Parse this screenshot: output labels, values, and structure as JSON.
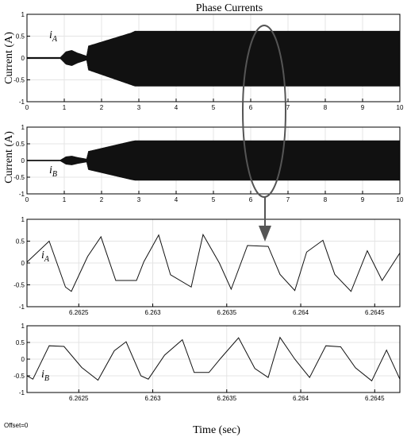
{
  "title": "Phase Currents",
  "offset_label": "Offset=0",
  "xlabel": "Time (sec)",
  "colors": {
    "trace": "#111111",
    "grid": "#e4e4e4",
    "axis": "#000000",
    "annotation": "#555555"
  },
  "chart_data": [
    {
      "type": "line",
      "ylabel": "Current (A)",
      "series": [
        {
          "name": "iA",
          "x": [
            0,
            0.9,
            1.05,
            1.2,
            1.35,
            1.6,
            1.65,
            2.8,
            2.9,
            10
          ],
          "envelope_upper": [
            0.02,
            0.02,
            0.15,
            0.18,
            0.12,
            0.05,
            0.28,
            0.58,
            0.62,
            0.62
          ],
          "envelope_lower": [
            -0.02,
            -0.02,
            -0.15,
            -0.18,
            -0.12,
            -0.05,
            -0.28,
            -0.62,
            -0.65,
            -0.65
          ]
        }
      ],
      "series_label": {
        "main": "i",
        "sub": "A"
      },
      "xlim": [
        0,
        10
      ],
      "ylim": [
        -1,
        1
      ],
      "xticks": [
        0,
        1,
        2,
        3,
        4,
        5,
        6,
        7,
        8,
        9,
        10
      ],
      "yticks": [
        1,
        0.5,
        0,
        -0.5,
        -1
      ],
      "yticklabels": [
        "1",
        "0.5",
        "0",
        "-0.5",
        "-1"
      ],
      "grid": true
    },
    {
      "type": "line",
      "ylabel": "Current (A)",
      "series": [
        {
          "name": "iB",
          "x": [
            0,
            0.9,
            1.05,
            1.2,
            1.35,
            1.6,
            1.65,
            2.8,
            2.9,
            10
          ],
          "envelope_upper": [
            0.02,
            0.02,
            0.12,
            0.14,
            0.1,
            0.05,
            0.28,
            0.58,
            0.6,
            0.6
          ],
          "envelope_lower": [
            -0.02,
            -0.02,
            -0.12,
            -0.14,
            -0.1,
            -0.05,
            -0.28,
            -0.58,
            -0.6,
            -0.6
          ]
        }
      ],
      "series_label": {
        "main": "i",
        "sub": "B"
      },
      "xlim": [
        0,
        10
      ],
      "ylim": [
        -1,
        1
      ],
      "xticks": [
        0,
        1,
        2,
        3,
        4,
        5,
        6,
        7,
        8,
        9,
        10
      ],
      "yticks": [
        1,
        0.5,
        0,
        -0.5,
        -1
      ],
      "yticklabels": [
        "1",
        "0.5",
        "0",
        "-0.5",
        "-1"
      ],
      "grid": true
    },
    {
      "type": "line",
      "series": [
        {
          "name": "iA",
          "x": [
            6.26215,
            6.2623,
            6.26241,
            6.26245,
            6.26256,
            6.26265,
            6.26275,
            6.26282,
            6.26289,
            6.26294,
            6.26304,
            6.26312,
            6.26326,
            6.26334,
            6.26345,
            6.26353,
            6.26364,
            6.26378,
            6.26386,
            6.26396,
            6.26404,
            6.26415,
            6.26423,
            6.26434,
            6.26445,
            6.26455,
            6.26467
          ],
          "y": [
            0.02,
            0.5,
            -0.55,
            -0.65,
            0.15,
            0.6,
            -0.4,
            -0.4,
            -0.4,
            0.03,
            0.64,
            -0.27,
            -0.55,
            0.65,
            0.0,
            -0.6,
            0.4,
            0.38,
            -0.26,
            -0.63,
            0.25,
            0.52,
            -0.26,
            -0.65,
            0.28,
            -0.4,
            0.23
          ]
        }
      ],
      "series_label": {
        "main": "i",
        "sub": "A"
      },
      "xlim": [
        6.26215,
        6.26467
      ],
      "ylim": [
        -1,
        1
      ],
      "xticks": [
        6.2625,
        6.263,
        6.2635,
        6.264,
        6.2645
      ],
      "xticklabels": [
        "6.2625",
        "6.263",
        "6.2635",
        "6.264",
        "6.2645"
      ],
      "yticks": [
        1,
        0.5,
        0,
        -0.5,
        -1
      ],
      "yticklabels": [
        "1",
        "0.5",
        "0",
        "-0.5",
        "-1"
      ],
      "grid": true
    },
    {
      "type": "line",
      "series": [
        {
          "name": "iB",
          "x": [
            6.26215,
            6.26219,
            6.2623,
            6.2624,
            6.26252,
            6.26263,
            6.26274,
            6.26282,
            6.26292,
            6.26297,
            6.26308,
            6.2632,
            6.26328,
            6.26338,
            6.26346,
            6.26358,
            6.26369,
            6.26378,
            6.26386,
            6.26396,
            6.26406,
            6.26417,
            6.26427,
            6.26437,
            6.26448,
            6.26458,
            6.26467
          ],
          "y": [
            -0.5,
            -0.6,
            0.4,
            0.38,
            -0.25,
            -0.63,
            0.25,
            0.52,
            -0.5,
            -0.6,
            0.12,
            0.58,
            -0.4,
            -0.4,
            0.03,
            0.64,
            -0.28,
            -0.55,
            0.65,
            0.0,
            -0.55,
            0.4,
            0.37,
            -0.26,
            -0.65,
            0.27,
            -0.6
          ]
        }
      ],
      "series_label": {
        "main": "i",
        "sub": "B"
      },
      "xlim": [
        6.26215,
        6.26467
      ],
      "ylim": [
        -1,
        1
      ],
      "xticks": [
        6.2625,
        6.263,
        6.2635,
        6.264,
        6.2645
      ],
      "xticklabels": [
        "6.2625",
        "6.263",
        "6.2635",
        "6.264",
        "6.2645"
      ],
      "yticks": [
        1,
        0.5,
        0,
        -0.5,
        -1
      ],
      "yticklabels": [
        "1",
        "0.5",
        "0",
        "-0.5",
        "-1"
      ],
      "grid": true
    }
  ]
}
